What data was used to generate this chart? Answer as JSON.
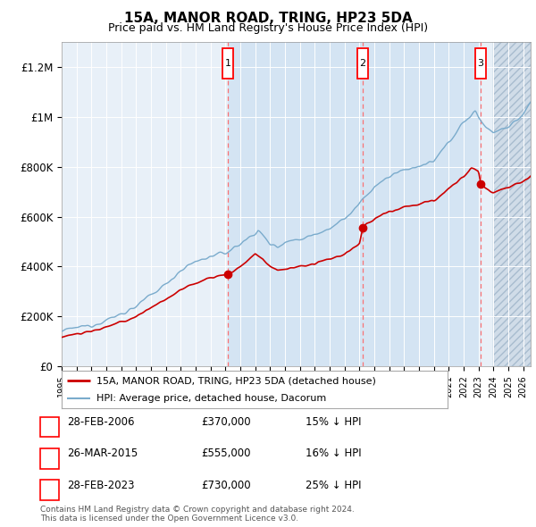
{
  "title": "15A, MANOR ROAD, TRING, HP23 5DA",
  "subtitle": "Price paid vs. HM Land Registry's House Price Index (HPI)",
  "title_fontsize": 11,
  "subtitle_fontsize": 9,
  "background_color": "#ffffff",
  "plot_bg_color": "#e8f0f8",
  "ylim": [
    0,
    1300000
  ],
  "xlim_start": 1995.0,
  "xlim_end": 2026.5,
  "yticks": [
    0,
    200000,
    400000,
    600000,
    800000,
    1000000,
    1200000
  ],
  "ytick_labels": [
    "£0",
    "£200K",
    "£400K",
    "£600K",
    "£800K",
    "£1M",
    "£1.2M"
  ],
  "red_line_color": "#cc0000",
  "blue_line_color": "#7aabcc",
  "sale_dates": [
    2006.15,
    2015.23,
    2023.15
  ],
  "sale_prices": [
    370000,
    555000,
    730000
  ],
  "sale_labels": [
    "1",
    "2",
    "3"
  ],
  "sale_date_strings": [
    "28-FEB-2006",
    "26-MAR-2015",
    "28-FEB-2023"
  ],
  "sale_price_strings": [
    "£370,000",
    "£555,000",
    "£730,000"
  ],
  "sale_hpi_strings": [
    "15% ↓ HPI",
    "16% ↓ HPI",
    "25% ↓ HPI"
  ],
  "legend_line1": "15A, MANOR ROAD, TRING, HP23 5DA (detached house)",
  "legend_line2": "HPI: Average price, detached house, Dacorum",
  "copyright": "Contains HM Land Registry data © Crown copyright and database right 2024.\nThis data is licensed under the Open Government Licence v3.0.",
  "hatch_start": 2024.0,
  "panel_bg": "#d8e8f5",
  "panel_alpha": 0.5
}
